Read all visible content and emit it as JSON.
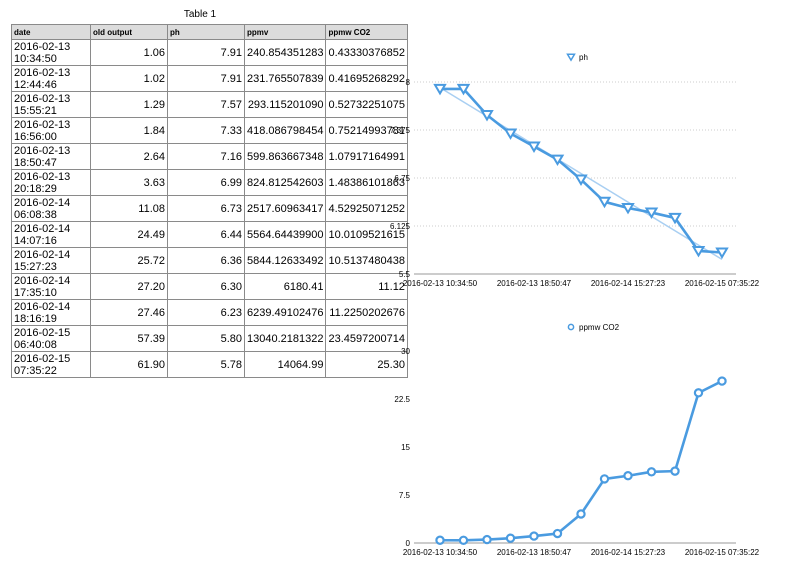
{
  "table": {
    "title": "Table 1",
    "headers": [
      "date",
      "old output",
      "ph",
      "ppmv",
      "ppmw CO2"
    ],
    "rows": [
      [
        "2016-02-13 10:34:50",
        "1.06",
        "7.91",
        "240.854351283",
        "0.43330376852"
      ],
      [
        "2016-02-13 12:44:46",
        "1.02",
        "7.91",
        "231.765507839",
        "0.41695268292"
      ],
      [
        "2016-02-13 15:55:21",
        "1.29",
        "7.57",
        "293.115201090",
        "0.52732251075"
      ],
      [
        "2016-02-13 16:56:00",
        "1.84",
        "7.33",
        "418.086798454",
        "0.75214993781"
      ],
      [
        "2016-02-13 18:50:47",
        "2.64",
        "7.16",
        "599.863667348",
        "1.07917164991"
      ],
      [
        "2016-02-13 20:18:29",
        "3.63",
        "6.99",
        "824.812542603",
        "1.48386101863"
      ],
      [
        "2016-02-14 06:08:38",
        "11.08",
        "6.73",
        "2517.60963417",
        "4.52925071252"
      ],
      [
        "2016-02-14 14:07:16",
        "24.49",
        "6.44",
        "5564.64439900",
        "10.0109521615"
      ],
      [
        "2016-02-14 15:27:23",
        "25.72",
        "6.36",
        "5844.12633492",
        "10.5137480438"
      ],
      [
        "2016-02-14 17:35:10",
        "27.20",
        "6.30",
        "6180.41",
        "11.12"
      ],
      [
        "2016-02-14 18:16:19",
        "27.46",
        "6.23",
        "6239.49102476",
        "11.2250202676"
      ],
      [
        "2016-02-15 06:40:08",
        "57.39",
        "5.80",
        "13040.2181322",
        "23.4597200714"
      ],
      [
        "2016-02-15 07:35:22",
        "61.90",
        "5.78",
        "14064.99",
        "25.30"
      ]
    ]
  },
  "chart_data": [
    {
      "type": "line",
      "legend": "ph",
      "legend_position": "top",
      "color": "#4a9be0",
      "marker": "triangle-down",
      "trendline": true,
      "grid": "dotted horizontal",
      "categories": [
        "2016-02-13 10:34:50",
        "2016-02-13 12:44:46",
        "2016-02-13 15:55:21",
        "2016-02-13 16:56:00",
        "2016-02-13 18:50:47",
        "2016-02-13 20:18:29",
        "2016-02-14 06:08:38",
        "2016-02-14 14:07:16",
        "2016-02-14 15:27:23",
        "2016-02-14 17:35:10",
        "2016-02-14 18:16:19",
        "2016-02-15 06:40:08",
        "2016-02-15 07:35:22"
      ],
      "values": [
        7.91,
        7.91,
        7.57,
        7.33,
        7.16,
        6.99,
        6.73,
        6.44,
        6.36,
        6.3,
        6.23,
        5.8,
        5.78
      ],
      "ylim": [
        5.5,
        8
      ],
      "yticks": [
        "5.5",
        "6.125",
        "6.75",
        "7.375",
        "8"
      ],
      "xtick_labels": [
        "2016-02-13 10:34:50",
        "2016-02-13 18:50:47",
        "2016-02-14 15:27:23",
        "2016-02-15 07:35:22"
      ]
    },
    {
      "type": "line",
      "legend": "ppmw CO2",
      "legend_position": "top",
      "color": "#4a9be0",
      "marker": "circle",
      "grid": "none",
      "categories": [
        "2016-02-13 10:34:50",
        "2016-02-13 12:44:46",
        "2016-02-13 15:55:21",
        "2016-02-13 16:56:00",
        "2016-02-13 18:50:47",
        "2016-02-13 20:18:29",
        "2016-02-14 06:08:38",
        "2016-02-14 14:07:16",
        "2016-02-14 15:27:23",
        "2016-02-14 17:35:10",
        "2016-02-14 18:16:19",
        "2016-02-15 06:40:08",
        "2016-02-15 07:35:22"
      ],
      "values": [
        0.43,
        0.42,
        0.53,
        0.75,
        1.08,
        1.48,
        4.53,
        10.01,
        10.51,
        11.12,
        11.23,
        23.46,
        25.3
      ],
      "ylim": [
        0,
        30
      ],
      "yticks": [
        "0",
        "7.5",
        "15",
        "22.5",
        "30"
      ],
      "xtick_labels": [
        "2016-02-13 10:34:50",
        "2016-02-13 18:50:47",
        "2016-02-14 15:27:23",
        "2016-02-15 07:35:22"
      ]
    }
  ]
}
